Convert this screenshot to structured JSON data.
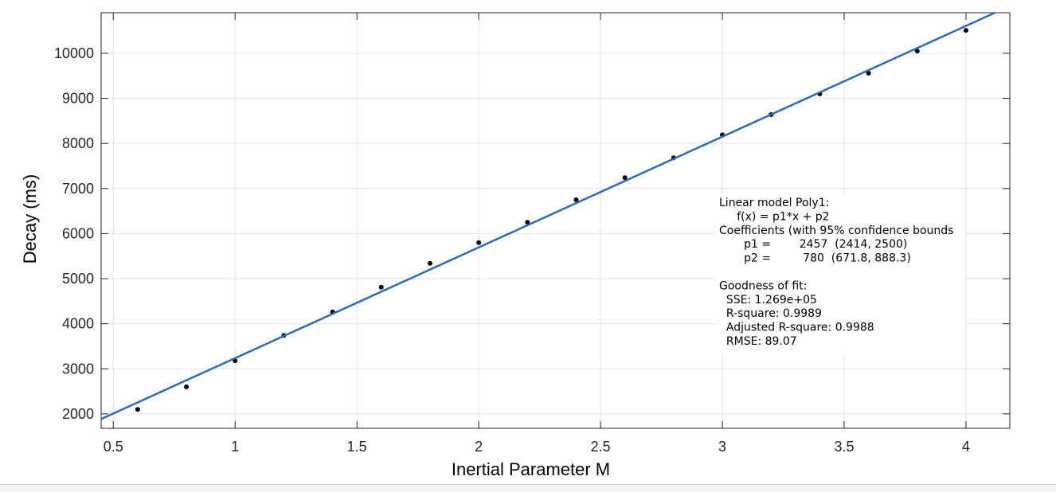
{
  "chart_data": {
    "type": "scatter",
    "xlabel": "Inertial Parameter M",
    "ylabel": "Decay (ms)",
    "xlim": [
      0.45,
      4.18
    ],
    "ylim": [
      1680,
      10900
    ],
    "xticks": [
      0.5,
      1,
      1.5,
      2,
      2.5,
      3,
      3.5,
      4
    ],
    "yticks": [
      2000,
      3000,
      4000,
      5000,
      6000,
      7000,
      8000,
      9000,
      10000
    ],
    "xtick_labels": [
      "0.5",
      "1",
      "1.5",
      "2",
      "2.5",
      "3",
      "3.5",
      "4"
    ],
    "ytick_labels": [
      "2000",
      "3000",
      "4000",
      "5000",
      "6000",
      "7000",
      "8000",
      "9000",
      "10000"
    ],
    "grid": true,
    "points": {
      "x": [
        0.6,
        0.8,
        1.0,
        1.2,
        1.4,
        1.6,
        1.8,
        2.0,
        2.2,
        2.4,
        2.6,
        2.8,
        3.0,
        3.2,
        3.4,
        3.6,
        3.8,
        4.0
      ],
      "y": [
        2100,
        2600,
        3180,
        3740,
        4260,
        4810,
        5340,
        5800,
        6250,
        6750,
        7240,
        7680,
        8190,
        8640,
        9100,
        9560,
        10050,
        10510
      ],
      "color": "#000000"
    },
    "fit": {
      "slope": 2457,
      "intercept": 780,
      "color": "#2e6bb3"
    },
    "annotation": {
      "lines": [
        "Linear model Poly1:",
        "     f(x) = p1*x + p2",
        "Coefficients (with 95% confidence bounds",
        "       p1 =        2457  (2414, 2500)",
        "       p2 =         780  (671.8, 888.3)",
        "",
        "Goodness of fit:",
        "  SSE: 1.269e+05",
        "  R-square: 0.9989",
        "  Adjusted R-square: 0.9988",
        "  RMSE: 89.07"
      ]
    }
  }
}
